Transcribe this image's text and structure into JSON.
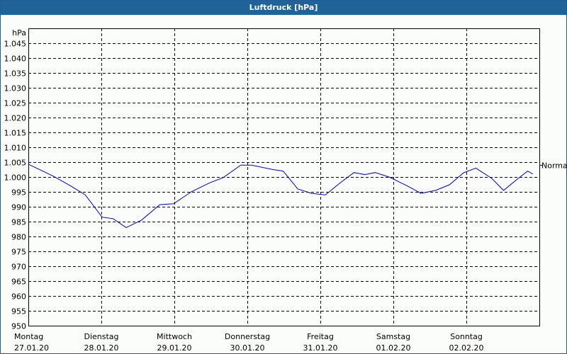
{
  "window": {
    "title": "Luftdruck [hPa]"
  },
  "colors": {
    "titlebar": "#1f6399",
    "border": "#1f5f96",
    "series": "#0000c0",
    "grid": "#000000",
    "background": "#fbfdfb"
  },
  "axis": {
    "unit_label": "hPa",
    "normal_label": "Normal"
  },
  "chart_data": {
    "type": "line",
    "title": "Luftdruck [hPa]",
    "xlabel": "",
    "ylabel": "hPa",
    "ylim": [
      950,
      1050
    ],
    "yticks": [
      "1.045",
      "1.040",
      "1.035",
      "1.030",
      "1.025",
      "1.020",
      "1.015",
      "1.010",
      "1.005",
      "1.000",
      "995",
      "990",
      "985",
      "980",
      "975",
      "970",
      "965",
      "960",
      "955",
      "950"
    ],
    "ytick_values": [
      1045,
      1040,
      1035,
      1030,
      1025,
      1020,
      1015,
      1010,
      1005,
      1000,
      995,
      990,
      985,
      980,
      975,
      970,
      965,
      960,
      955,
      950
    ],
    "xticks": [
      {
        "day": "Montag",
        "date": "27.01.20"
      },
      {
        "day": "Dienstag",
        "date": "28.01.20"
      },
      {
        "day": "Mittwoch",
        "date": "29.01.20"
      },
      {
        "day": "Donnerstag",
        "date": "30.01.20"
      },
      {
        "day": "Freitag",
        "date": "31.01.20"
      },
      {
        "day": "Samstag",
        "date": "01.02.20"
      },
      {
        "day": "Sonntag",
        "date": "02.02.20"
      }
    ],
    "grid": true,
    "reference_line": {
      "label": "Normal",
      "value": 1004
    },
    "series": [
      {
        "name": "Luftdruck",
        "x_days": [
          0.0,
          0.34,
          0.58,
          0.78,
          1.01,
          1.16,
          1.34,
          1.55,
          1.8,
          1.99,
          2.23,
          2.48,
          2.67,
          2.91,
          3.06,
          3.35,
          3.49,
          3.69,
          3.88,
          4.07,
          4.27,
          4.46,
          4.61,
          4.75,
          4.95,
          5.19,
          5.38,
          5.58,
          5.77,
          5.96,
          6.13,
          6.35,
          6.51,
          6.7,
          6.84,
          6.91
        ],
        "values": [
          1004.3,
          1000.3,
          997.0,
          994.0,
          986.5,
          986.0,
          983.0,
          985.5,
          990.7,
          991.0,
          995.0,
          998.0,
          999.8,
          1004.0,
          1004.0,
          1002.5,
          1002.0,
          996.0,
          994.5,
          994.0,
          998.0,
          1001.5,
          1000.8,
          1001.5,
          999.9,
          997.0,
          994.5,
          995.5,
          997.4,
          1001.4,
          1003.0,
          999.5,
          995.5,
          999.3,
          1002.0,
          1001.0
        ]
      }
    ]
  }
}
